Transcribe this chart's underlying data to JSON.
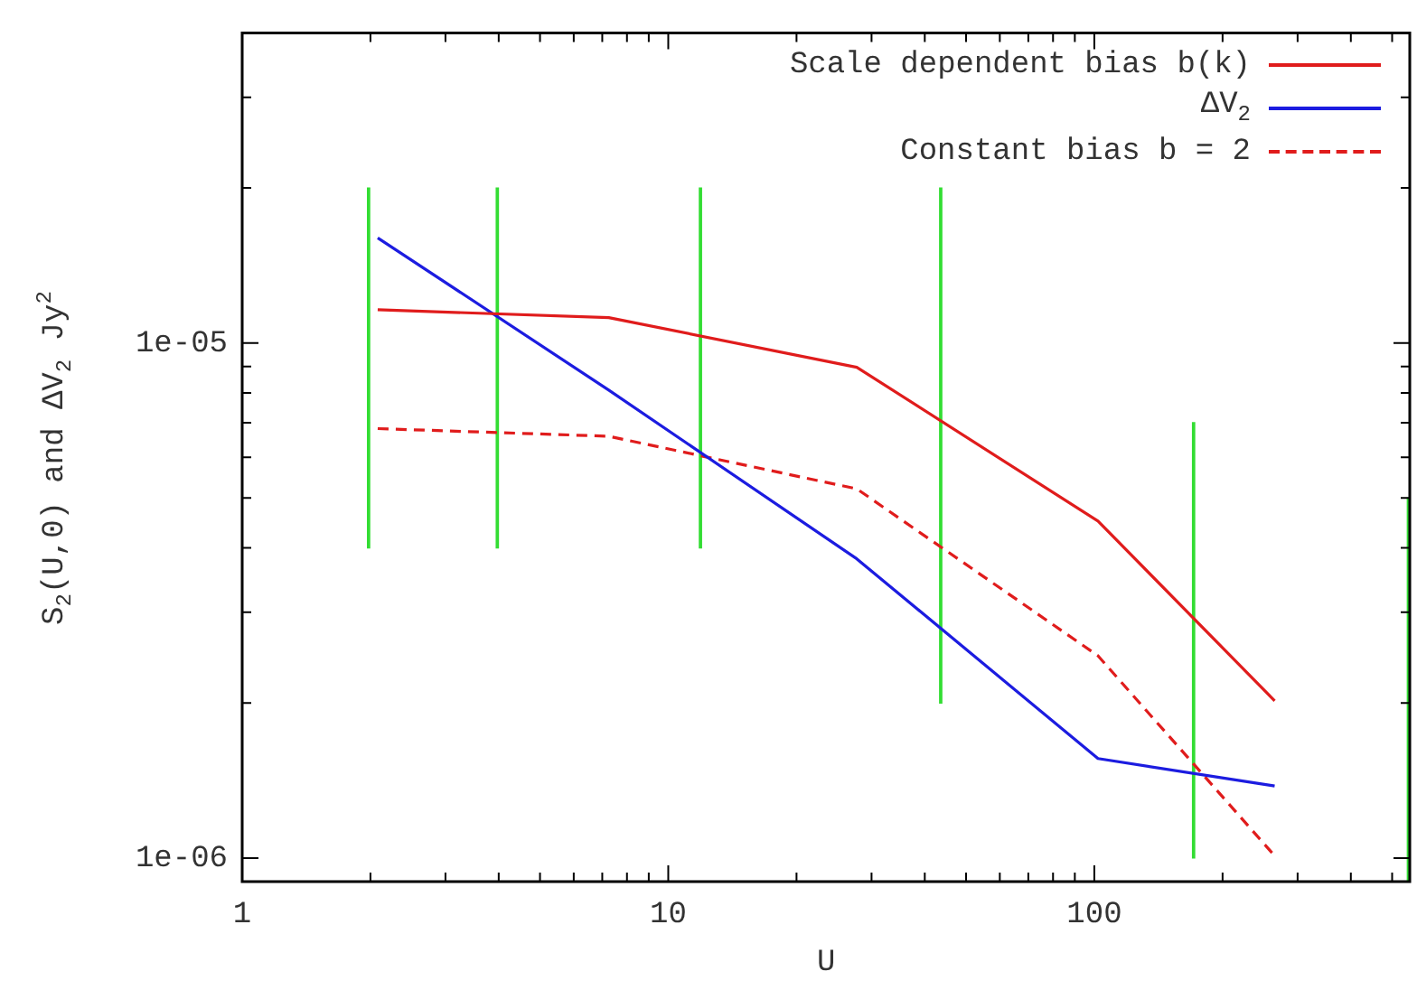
{
  "chart_data": {
    "type": "line",
    "xlabel": "U",
    "ylabel": "S$_{2}$(U,0) and ΔV$_{2}$ Jy$^{2}$",
    "log": "xy",
    "x": [
      2.08,
      7.25,
      27.7,
      102,
      265
    ],
    "series": [
      {
        "name": "Scale dependent bias b(k)",
        "color": "#e01c1c",
        "line_style": "solid",
        "values": [
          1.16e-05,
          1.12e-05,
          8.97e-06,
          4.51e-06,
          2.02e-06
        ]
      },
      {
        "name": "ΔV$_{2}$",
        "color": "#1c1ce0",
        "line_style": "solid",
        "values": [
          1.6e-05,
          8.1e-06,
          3.81e-06,
          1.56e-06,
          1.38e-06
        ]
      },
      {
        "name": "Constant bias b = 2",
        "color": "#e01c1c",
        "line_style": "dashed",
        "values": [
          6.82e-06,
          6.59e-06,
          5.21e-06,
          2.47e-06,
          1.01e-06
        ]
      },
      {
        "type": "bar",
        "color": "#33dd33",
        "x": [
          1.98,
          3.97,
          11.9,
          43.6,
          171,
          546
        ],
        "base": [
          4e-06,
          4e-06,
          4e-06,
          2e-06,
          1e-06,
          9e-07
        ],
        "values": [
          1.6e-05,
          1.6e-05,
          1.6e-05,
          1.8e-05,
          6e-06,
          4.1e-06
        ]
      }
    ],
    "marker": "none",
    "xlim": [
      1,
      550
    ],
    "xticks": [
      1,
      {
        "value": 2,
        "label": null
      },
      {
        "value": 3,
        "label": null
      },
      {
        "value": 4,
        "label": null
      },
      {
        "value": 5,
        "label": null
      },
      {
        "value": 6,
        "label": null
      },
      {
        "value": 7,
        "label": null
      },
      {
        "value": 8,
        "label": null
      },
      {
        "value": 9,
        "label": null
      },
      10,
      {
        "value": 20,
        "label": null
      },
      {
        "value": 30,
        "label": null
      },
      {
        "value": 40,
        "label": null
      },
      {
        "value": 50,
        "label": null
      },
      {
        "value": 60,
        "label": null
      },
      {
        "value": 70,
        "label": null
      },
      {
        "value": 80,
        "label": null
      },
      {
        "value": 90,
        "label": null
      },
      100,
      {
        "value": 200,
        "label": null
      },
      {
        "value": 300,
        "label": null
      },
      {
        "value": 400,
        "label": null
      },
      {
        "value": 500,
        "label": null
      }
    ],
    "ylim": [
      9e-07,
      4e-05
    ],
    "yticks": [
      {
        "value": 1e-06,
        "label": "1e-06"
      },
      {
        "value": 2e-06,
        "label": null
      },
      {
        "value": 3e-06,
        "label": null
      },
      {
        "value": 4e-06,
        "label": null
      },
      {
        "value": 5e-06,
        "label": null
      },
      {
        "value": 6e-06,
        "label": null
      },
      {
        "value": 7e-06,
        "label": null
      },
      {
        "value": 8e-06,
        "label": null
      },
      {
        "value": 9e-06,
        "label": null
      },
      {
        "value": 1e-05,
        "label": "1e-05"
      },
      {
        "value": 2e-05,
        "label": null
      },
      {
        "value": 3e-05,
        "label": null
      },
      {
        "value": 4e-05,
        "label": null
      }
    ],
    "grid": false,
    "legend": "top right"
  }
}
